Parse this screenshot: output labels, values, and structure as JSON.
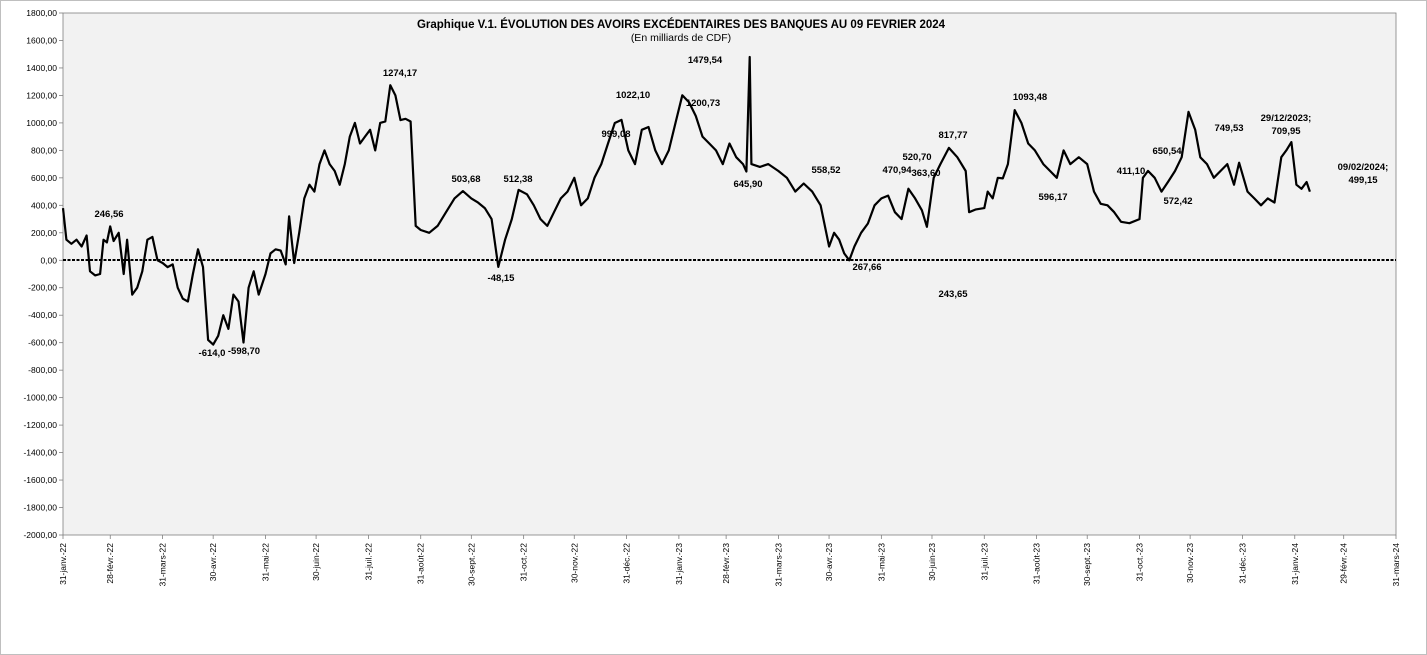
{
  "chart_data": {
    "type": "line",
    "title": "Graphique V.1. ÉVOLUTION DES  AVOIRS EXCÉDENTAIRES DES BANQUES  AU  09 FEVRIER 2024",
    "subtitle": "(En milliards de CDF)",
    "xlabel": "",
    "ylabel": "",
    "ylim": [
      -2000,
      1800
    ],
    "ytick_step": 200,
    "ytick_labels": [
      "-2000,00",
      "-1800,00",
      "-1600,00",
      "-1400,00",
      "-1200,00",
      "-1000,00",
      "-800,00",
      "-600,00",
      "-400,00",
      "-200,00",
      "0,00",
      "200,00",
      "400,00",
      "600,00",
      "800,00",
      "1000,00",
      "1200,00",
      "1400,00",
      "1600,00",
      "1800,00"
    ],
    "xlim": [
      "2022-01-31",
      "2024-03-31"
    ],
    "xtick_dates": [
      "2022-01-31",
      "2022-02-28",
      "2022-03-31",
      "2022-04-30",
      "2022-05-31",
      "2022-06-30",
      "2022-07-31",
      "2022-08-31",
      "2022-09-30",
      "2022-10-31",
      "2022-11-30",
      "2022-12-31",
      "2023-01-31",
      "2023-02-28",
      "2023-03-31",
      "2023-04-30",
      "2023-05-31",
      "2023-06-30",
      "2023-07-31",
      "2023-08-31",
      "2023-09-30",
      "2023-10-31",
      "2023-11-30",
      "2023-12-31",
      "2024-01-31",
      "2024-02-29",
      "2024-03-31"
    ],
    "xtick_labels": [
      "31-janv.-22",
      "28-févr.-22",
      "31-mars-22",
      "30-avr.-22",
      "31-mai-22",
      "30-juin-22",
      "31-juil.-22",
      "31-août-22",
      "30-sept.-22",
      "31-oct.-22",
      "30-nov.-22",
      "31-déc.-22",
      "31-janv.-23",
      "28-févr.-23",
      "31-mars-23",
      "30-avr.-23",
      "31-mai-23",
      "30-juin-23",
      "31-juil.-23",
      "31-août-23",
      "30-sept.-23",
      "31-oct.-23",
      "30-nov.-23",
      "31-déc.-23",
      "31-janv.-24",
      "29-févr.-24",
      "31-mars-24"
    ],
    "grid": false,
    "legend": "none",
    "series": [
      {
        "color": "#000000",
        "points": [
          [
            "2022-01-31",
            380
          ],
          [
            "2022-02-02",
            150
          ],
          [
            "2022-02-05",
            120
          ],
          [
            "2022-02-08",
            150
          ],
          [
            "2022-02-11",
            100
          ],
          [
            "2022-02-14",
            180
          ],
          [
            "2022-02-16",
            -80
          ],
          [
            "2022-02-19",
            -110
          ],
          [
            "2022-02-22",
            -100
          ],
          [
            "2022-02-24",
            150
          ],
          [
            "2022-02-26",
            130
          ],
          [
            "2022-02-28",
            246.56
          ],
          [
            "2022-03-02",
            140
          ],
          [
            "2022-03-05",
            200
          ],
          [
            "2022-03-08",
            -100
          ],
          [
            "2022-03-10",
            150
          ],
          [
            "2022-03-13",
            -250
          ],
          [
            "2022-03-16",
            -200
          ],
          [
            "2022-03-19",
            -80
          ],
          [
            "2022-03-22",
            150
          ],
          [
            "2022-03-25",
            170
          ],
          [
            "2022-03-28",
            0
          ],
          [
            "2022-03-31",
            -20
          ],
          [
            "2022-04-03",
            -50
          ],
          [
            "2022-04-06",
            -30
          ],
          [
            "2022-04-09",
            -200
          ],
          [
            "2022-04-12",
            -280
          ],
          [
            "2022-04-15",
            -300
          ],
          [
            "2022-04-18",
            -100
          ],
          [
            "2022-04-21",
            80
          ],
          [
            "2022-04-24",
            -50
          ],
          [
            "2022-04-27",
            -580
          ],
          [
            "2022-04-30",
            -614
          ],
          [
            "2022-05-03",
            -550
          ],
          [
            "2022-05-06",
            -400
          ],
          [
            "2022-05-09",
            -500
          ],
          [
            "2022-05-12",
            -250
          ],
          [
            "2022-05-15",
            -300
          ],
          [
            "2022-05-18",
            -598.7
          ],
          [
            "2022-05-21",
            -200
          ],
          [
            "2022-05-24",
            -80
          ],
          [
            "2022-05-27",
            -250
          ],
          [
            "2022-05-31",
            -100
          ],
          [
            "2022-06-03",
            50
          ],
          [
            "2022-06-06",
            80
          ],
          [
            "2022-06-09",
            70
          ],
          [
            "2022-06-12",
            -30
          ],
          [
            "2022-06-14",
            320
          ],
          [
            "2022-06-17",
            -20
          ],
          [
            "2022-06-20",
            200
          ],
          [
            "2022-06-23",
            450
          ],
          [
            "2022-06-26",
            550
          ],
          [
            "2022-06-29",
            500
          ],
          [
            "2022-07-02",
            700
          ],
          [
            "2022-07-05",
            800
          ],
          [
            "2022-07-08",
            700
          ],
          [
            "2022-07-11",
            650
          ],
          [
            "2022-07-14",
            550
          ],
          [
            "2022-07-17",
            700
          ],
          [
            "2022-07-20",
            900
          ],
          [
            "2022-07-23",
            1000
          ],
          [
            "2022-07-26",
            850
          ],
          [
            "2022-07-29",
            900
          ],
          [
            "2022-08-01",
            950
          ],
          [
            "2022-08-04",
            800
          ],
          [
            "2022-08-07",
            1000
          ],
          [
            "2022-08-10",
            1010
          ],
          [
            "2022-08-13",
            1274.17
          ],
          [
            "2022-08-16",
            1200
          ],
          [
            "2022-08-19",
            1020
          ],
          [
            "2022-08-22",
            1030
          ],
          [
            "2022-08-25",
            1010
          ],
          [
            "2022-08-28",
            250
          ],
          [
            "2022-08-31",
            220
          ],
          [
            "2022-09-05",
            200
          ],
          [
            "2022-09-10",
            250
          ],
          [
            "2022-09-15",
            350
          ],
          [
            "2022-09-20",
            450
          ],
          [
            "2022-09-25",
            503.68
          ],
          [
            "2022-09-30",
            450
          ],
          [
            "2022-10-04",
            420
          ],
          [
            "2022-10-08",
            380
          ],
          [
            "2022-10-12",
            300
          ],
          [
            "2022-10-16",
            -48.15
          ],
          [
            "2022-10-20",
            150
          ],
          [
            "2022-10-24",
            300
          ],
          [
            "2022-10-28",
            512.38
          ],
          [
            "2022-11-02",
            480
          ],
          [
            "2022-11-06",
            400
          ],
          [
            "2022-11-10",
            300
          ],
          [
            "2022-11-14",
            250
          ],
          [
            "2022-11-18",
            350
          ],
          [
            "2022-11-22",
            450
          ],
          [
            "2022-11-26",
            500
          ],
          [
            "2022-11-30",
            600
          ],
          [
            "2022-12-04",
            400
          ],
          [
            "2022-12-08",
            450
          ],
          [
            "2022-12-12",
            600
          ],
          [
            "2022-12-16",
            700
          ],
          [
            "2022-12-20",
            850
          ],
          [
            "2022-12-24",
            999.08
          ],
          [
            "2022-12-28",
            1022.1
          ],
          [
            "2023-01-01",
            800
          ],
          [
            "2023-01-05",
            700
          ],
          [
            "2023-01-09",
            950
          ],
          [
            "2023-01-13",
            970
          ],
          [
            "2023-01-17",
            800
          ],
          [
            "2023-01-21",
            700
          ],
          [
            "2023-01-25",
            800
          ],
          [
            "2023-01-29",
            1000
          ],
          [
            "2023-02-02",
            1200.73
          ],
          [
            "2023-02-06",
            1150
          ],
          [
            "2023-02-10",
            1050
          ],
          [
            "2023-02-14",
            900
          ],
          [
            "2023-02-18",
            850
          ],
          [
            "2023-02-22",
            800
          ],
          [
            "2023-02-26",
            700
          ],
          [
            "2023-03-02",
            850
          ],
          [
            "2023-03-06",
            750
          ],
          [
            "2023-03-10",
            700
          ],
          [
            "2023-03-12",
            645.9
          ],
          [
            "2023-03-14",
            1479.54
          ],
          [
            "2023-03-15",
            700
          ],
          [
            "2023-03-20",
            680
          ],
          [
            "2023-03-25",
            700
          ],
          [
            "2023-03-31",
            650
          ],
          [
            "2023-04-05",
            600
          ],
          [
            "2023-04-10",
            500
          ],
          [
            "2023-04-15",
            558.52
          ],
          [
            "2023-04-20",
            500
          ],
          [
            "2023-04-25",
            400
          ],
          [
            "2023-04-30",
            100
          ],
          [
            "2023-05-03",
            200
          ],
          [
            "2023-05-06",
            150
          ],
          [
            "2023-05-09",
            50
          ],
          [
            "2023-05-12",
            0
          ],
          [
            "2023-05-15",
            100
          ],
          [
            "2023-05-19",
            200
          ],
          [
            "2023-05-23",
            267.66
          ],
          [
            "2023-05-27",
            400
          ],
          [
            "2023-05-31",
            450
          ],
          [
            "2023-06-04",
            470.94
          ],
          [
            "2023-06-08",
            350
          ],
          [
            "2023-06-12",
            300
          ],
          [
            "2023-06-16",
            520.7
          ],
          [
            "2023-06-20",
            450
          ],
          [
            "2023-06-24",
            363.6
          ],
          [
            "2023-06-27",
            243.65
          ],
          [
            "2023-07-01",
            600
          ],
          [
            "2023-07-05",
            700
          ],
          [
            "2023-07-10",
            817.77
          ],
          [
            "2023-07-15",
            750
          ],
          [
            "2023-07-20",
            650
          ],
          [
            "2023-07-22",
            350
          ],
          [
            "2023-07-26",
            370
          ],
          [
            "2023-07-31",
            380
          ],
          [
            "2023-08-02",
            500
          ],
          [
            "2023-08-05",
            450
          ],
          [
            "2023-08-08",
            600
          ],
          [
            "2023-08-11",
            596.17
          ],
          [
            "2023-08-14",
            700
          ],
          [
            "2023-08-18",
            1093.48
          ],
          [
            "2023-08-22",
            1000
          ],
          [
            "2023-08-26",
            850
          ],
          [
            "2023-08-30",
            800
          ],
          [
            "2023-09-04",
            700
          ],
          [
            "2023-09-08",
            650
          ],
          [
            "2023-09-12",
            600
          ],
          [
            "2023-09-16",
            800
          ],
          [
            "2023-09-20",
            700
          ],
          [
            "2023-09-25",
            750
          ],
          [
            "2023-09-30",
            700
          ],
          [
            "2023-10-04",
            500
          ],
          [
            "2023-10-08",
            411.1
          ],
          [
            "2023-10-12",
            400
          ],
          [
            "2023-10-16",
            350
          ],
          [
            "2023-10-20",
            280
          ],
          [
            "2023-10-25",
            270
          ],
          [
            "2023-10-31",
            300
          ],
          [
            "2023-11-02",
            600
          ],
          [
            "2023-11-05",
            650.54
          ],
          [
            "2023-11-09",
            600
          ],
          [
            "2023-11-13",
            500
          ],
          [
            "2023-11-17",
            572.42
          ],
          [
            "2023-11-21",
            650
          ],
          [
            "2023-11-25",
            750
          ],
          [
            "2023-11-29",
            1080
          ],
          [
            "2023-12-03",
            950
          ],
          [
            "2023-12-06",
            749.53
          ],
          [
            "2023-12-10",
            700
          ],
          [
            "2023-12-14",
            600
          ],
          [
            "2023-12-18",
            650
          ],
          [
            "2023-12-22",
            700
          ],
          [
            "2023-12-26",
            550
          ],
          [
            "2023-12-29",
            709.95
          ],
          [
            "2024-01-03",
            500
          ],
          [
            "2024-01-07",
            450
          ],
          [
            "2024-01-11",
            400
          ],
          [
            "2024-01-15",
            450
          ],
          [
            "2024-01-19",
            420
          ],
          [
            "2024-01-23",
            750
          ],
          [
            "2024-01-26",
            800
          ],
          [
            "2024-01-29",
            860
          ],
          [
            "2024-02-01",
            550
          ],
          [
            "2024-02-04",
            520
          ],
          [
            "2024-02-07",
            570
          ],
          [
            "2024-02-09",
            499.15
          ]
        ]
      }
    ],
    "data_labels": [
      {
        "text": "246,56"
      },
      {
        "text": "-614,0"
      },
      {
        "text": "-598,70"
      },
      {
        "text": "1274,17"
      },
      {
        "text": "503,68"
      },
      {
        "text": "-48,15"
      },
      {
        "text": "512,38"
      },
      {
        "text": "999,08"
      },
      {
        "text": "1022,10"
      },
      {
        "text": "1200,73"
      },
      {
        "text": "1479,54"
      },
      {
        "text": "645,90"
      },
      {
        "text": "558,52"
      },
      {
        "text": "267,66"
      },
      {
        "text": "470,94"
      },
      {
        "text": "520,70"
      },
      {
        "text": "363,60"
      },
      {
        "text": "243,65"
      },
      {
        "text": "817,77"
      },
      {
        "text": "1093,48"
      },
      {
        "text": "596,17"
      },
      {
        "text": "411,10"
      },
      {
        "text": "650,54"
      },
      {
        "text": "572,42"
      },
      {
        "text": "749,53"
      },
      {
        "text": "29/12/2023;"
      },
      {
        "text": "709,95"
      },
      {
        "text": "09/02/2024;"
      },
      {
        "text": "499,15"
      }
    ]
  }
}
